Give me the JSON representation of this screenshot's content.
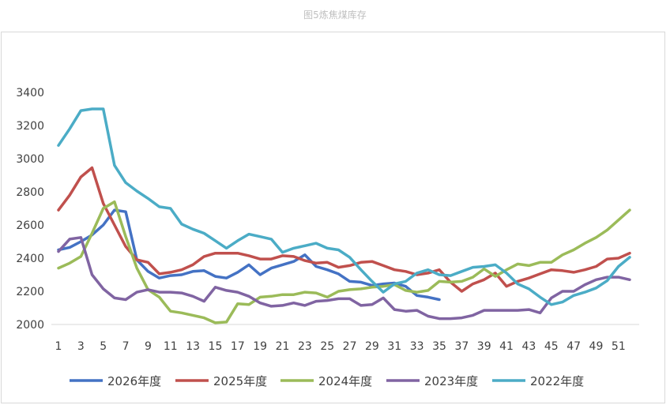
{
  "caption": "图5炼焦煤库存",
  "chart_data": {
    "type": "line",
    "title": "",
    "xlabel": "",
    "ylabel": "",
    "ylim": [
      2000,
      3400
    ],
    "yticks": [
      2000,
      2200,
      2400,
      2600,
      2800,
      3000,
      3200,
      3400
    ],
    "xlim": [
      1,
      52
    ],
    "xticks": [
      1,
      3,
      5,
      7,
      9,
      11,
      13,
      15,
      17,
      19,
      21,
      23,
      25,
      27,
      29,
      31,
      33,
      35,
      37,
      39,
      41,
      43,
      45,
      47,
      49,
      51
    ],
    "grid": false,
    "legend": "bottom",
    "series": [
      {
        "name": "2026年度",
        "color": "#4472c4",
        "x": [
          1,
          2,
          3,
          4,
          5,
          6,
          7,
          8,
          9,
          10,
          11,
          12,
          13,
          14,
          15,
          16,
          17,
          18,
          19,
          20,
          21,
          22,
          23,
          24,
          25,
          26,
          27,
          28,
          29,
          30,
          31,
          32,
          33,
          34,
          35
        ],
        "y": [
          2450,
          2465,
          2500,
          2540,
          2600,
          2690,
          2680,
          2390,
          2320,
          2280,
          2295,
          2300,
          2320,
          2325,
          2290,
          2280,
          2315,
          2360,
          2300,
          2340,
          2360,
          2380,
          2420,
          2350,
          2330,
          2305,
          2260,
          2255,
          2235,
          2245,
          2250,
          2230,
          2175,
          2165,
          2150
        ]
      },
      {
        "name": "2025年度",
        "color": "#c0504d",
        "x": [
          1,
          2,
          3,
          4,
          5,
          6,
          7,
          8,
          9,
          10,
          11,
          12,
          13,
          14,
          15,
          16,
          17,
          18,
          19,
          20,
          21,
          22,
          23,
          24,
          25,
          26,
          27,
          28,
          29,
          30,
          31,
          32,
          33,
          34,
          35,
          36,
          37,
          38,
          39,
          40,
          41,
          42,
          43,
          44,
          45,
          46,
          47,
          48,
          49,
          50,
          51,
          52
        ],
        "y": [
          2690,
          2780,
          2890,
          2945,
          2730,
          2600,
          2470,
          2390,
          2375,
          2305,
          2315,
          2330,
          2360,
          2410,
          2430,
          2430,
          2430,
          2415,
          2395,
          2395,
          2415,
          2410,
          2385,
          2370,
          2375,
          2345,
          2355,
          2375,
          2380,
          2355,
          2330,
          2320,
          2300,
          2310,
          2330,
          2255,
          2200,
          2245,
          2270,
          2310,
          2230,
          2260,
          2280,
          2305,
          2330,
          2325,
          2315,
          2330,
          2350,
          2395,
          2400,
          2430
        ]
      },
      {
        "name": "2024年度",
        "color": "#9bbb59",
        "x": [
          1,
          2,
          3,
          4,
          5,
          6,
          7,
          8,
          9,
          10,
          11,
          12,
          13,
          14,
          15,
          16,
          17,
          18,
          19,
          20,
          21,
          22,
          23,
          24,
          25,
          26,
          27,
          28,
          29,
          30,
          31,
          32,
          33,
          34,
          35,
          36,
          37,
          38,
          39,
          40,
          41,
          42,
          43,
          44,
          45,
          46,
          47,
          48,
          49,
          50,
          51,
          52
        ],
        "y": [
          2340,
          2370,
          2410,
          2550,
          2700,
          2740,
          2530,
          2340,
          2210,
          2165,
          2080,
          2070,
          2055,
          2040,
          2010,
          2015,
          2125,
          2120,
          2165,
          2170,
          2180,
          2180,
          2195,
          2190,
          2165,
          2200,
          2210,
          2215,
          2225,
          2230,
          2240,
          2205,
          2195,
          2205,
          2260,
          2255,
          2260,
          2285,
          2335,
          2290,
          2330,
          2365,
          2355,
          2375,
          2375,
          2420,
          2450,
          2490,
          2525,
          2570,
          2630,
          2690
        ]
      },
      {
        "name": "2023年度",
        "color": "#8064a2",
        "x": [
          1,
          2,
          3,
          4,
          5,
          6,
          7,
          8,
          9,
          10,
          11,
          12,
          13,
          14,
          15,
          16,
          17,
          18,
          19,
          20,
          21,
          22,
          23,
          24,
          25,
          26,
          27,
          28,
          29,
          30,
          31,
          32,
          33,
          34,
          35,
          36,
          37,
          38,
          39,
          40,
          41,
          42,
          43,
          44,
          45,
          46,
          47,
          48,
          49,
          50,
          51,
          52
        ],
        "y": [
          2440,
          2515,
          2525,
          2300,
          2215,
          2160,
          2150,
          2195,
          2210,
          2195,
          2195,
          2190,
          2170,
          2140,
          2225,
          2205,
          2195,
          2170,
          2130,
          2110,
          2115,
          2130,
          2115,
          2140,
          2145,
          2155,
          2155,
          2115,
          2120,
          2160,
          2090,
          2080,
          2085,
          2050,
          2035,
          2035,
          2040,
          2055,
          2085,
          2085,
          2085,
          2085,
          2090,
          2070,
          2160,
          2200,
          2200,
          2240,
          2270,
          2285,
          2285,
          2270
        ]
      },
      {
        "name": "2022年度",
        "color": "#4bacc6",
        "x": [
          1,
          2,
          3,
          4,
          5,
          6,
          7,
          8,
          9,
          10,
          11,
          12,
          13,
          14,
          15,
          16,
          17,
          18,
          19,
          20,
          21,
          22,
          23,
          24,
          25,
          26,
          27,
          28,
          29,
          30,
          31,
          32,
          33,
          34,
          35,
          36,
          37,
          38,
          39,
          40,
          41,
          42,
          43,
          44,
          45,
          46,
          47,
          48,
          49,
          50,
          51,
          52
        ],
        "y": [
          3080,
          3180,
          3290,
          3300,
          3300,
          2960,
          2855,
          2805,
          2760,
          2710,
          2700,
          2605,
          2575,
          2550,
          2505,
          2460,
          2505,
          2545,
          2530,
          2515,
          2435,
          2460,
          2475,
          2490,
          2460,
          2450,
          2405,
          2330,
          2260,
          2195,
          2245,
          2260,
          2310,
          2330,
          2300,
          2295,
          2320,
          2345,
          2350,
          2360,
          2310,
          2245,
          2215,
          2165,
          2120,
          2135,
          2175,
          2195,
          2220,
          2265,
          2350,
          2405
        ]
      }
    ]
  }
}
